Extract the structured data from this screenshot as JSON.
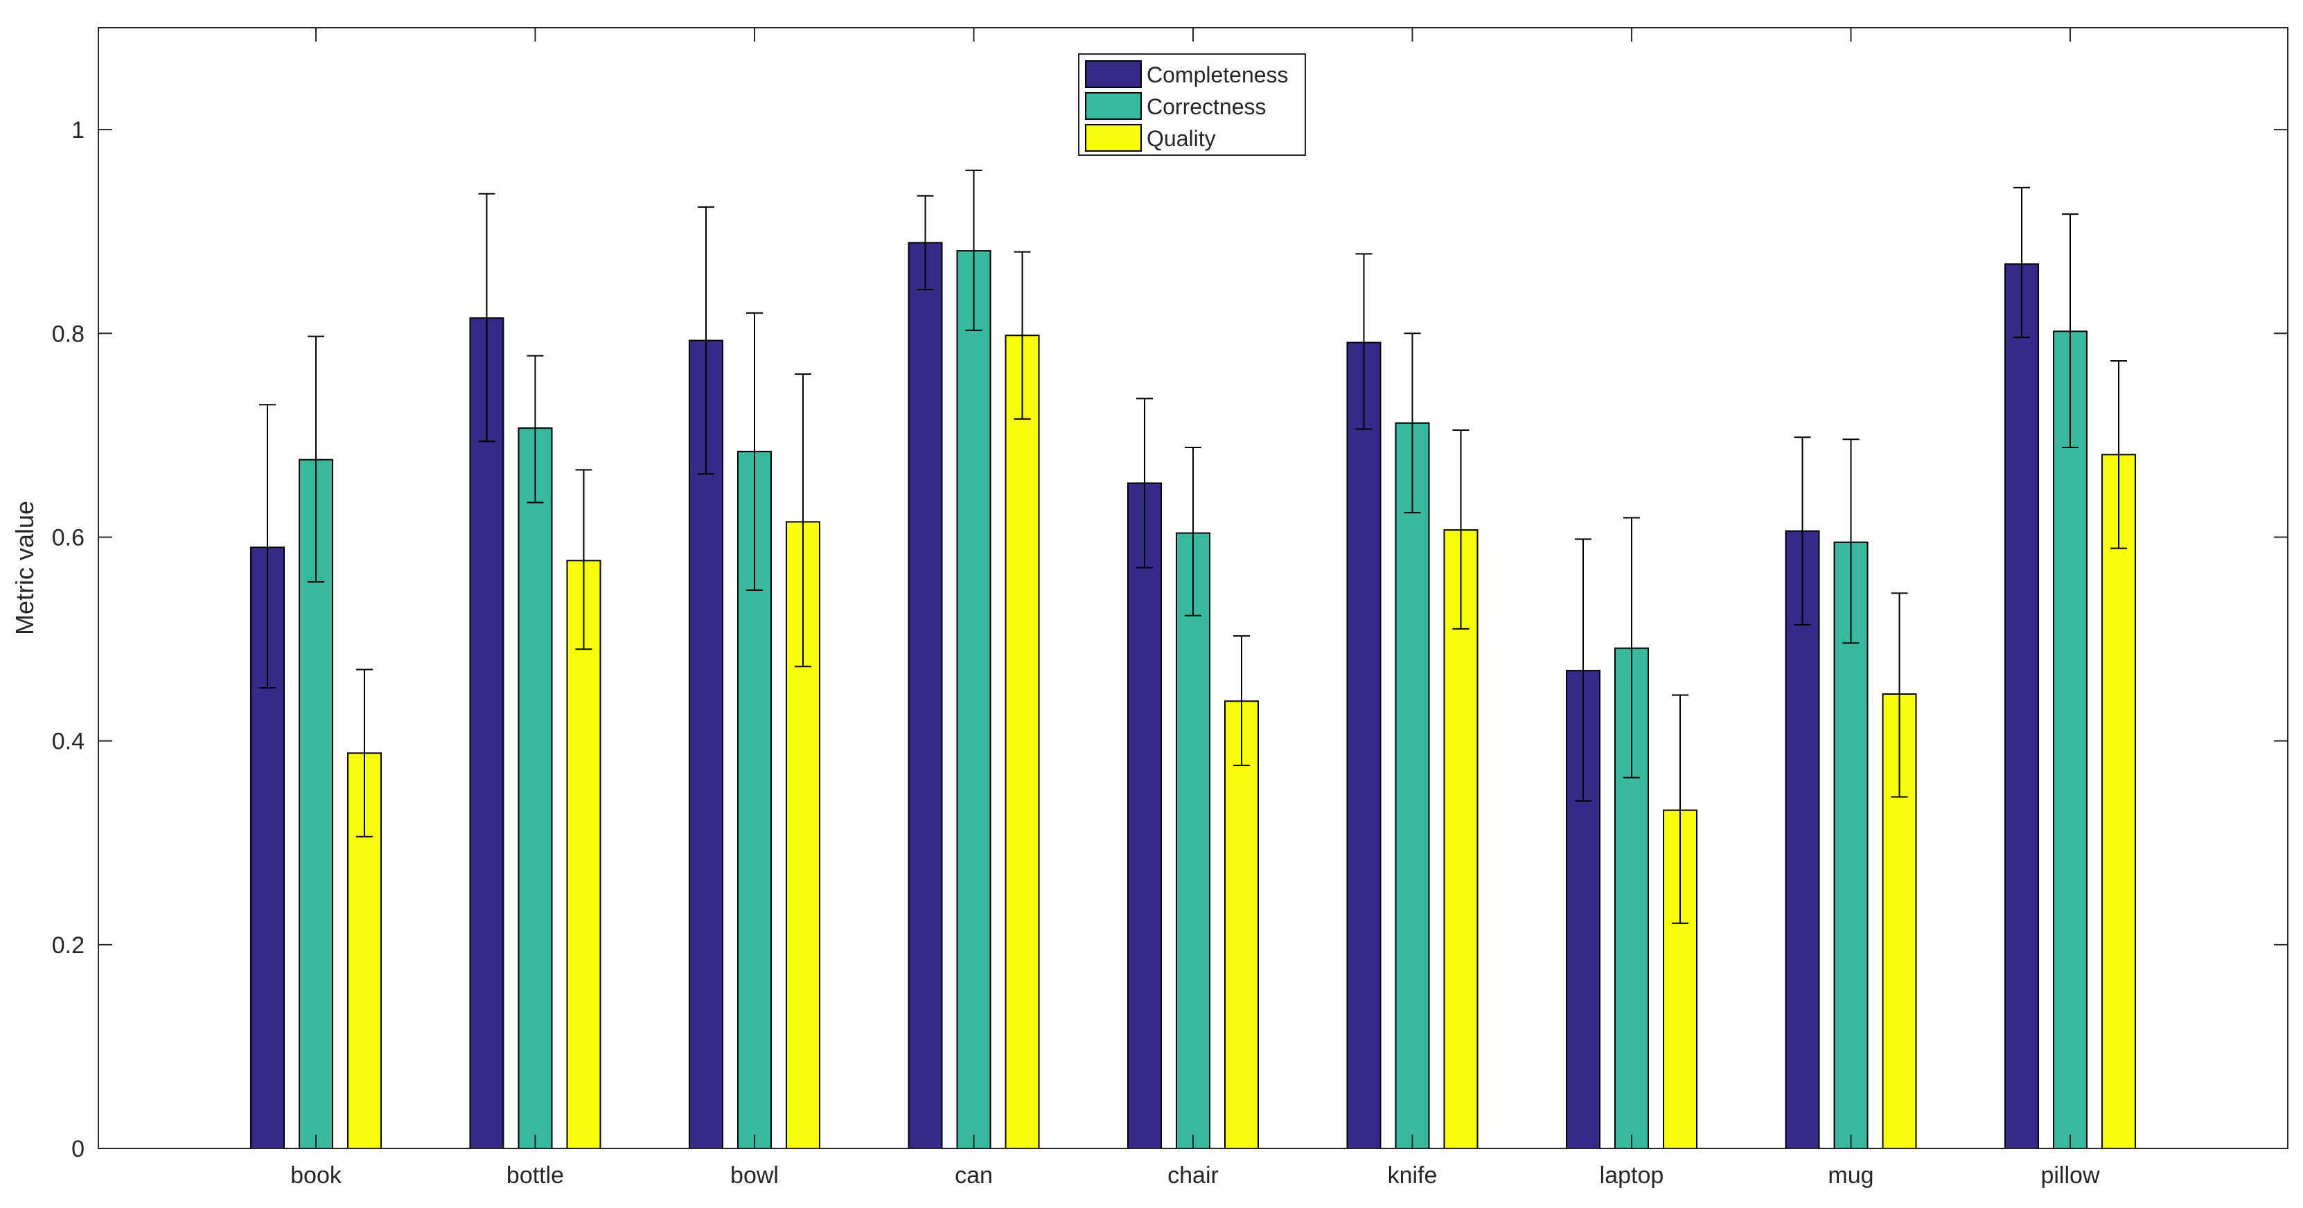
{
  "chart_data": {
    "type": "bar",
    "title": "",
    "xlabel": "",
    "ylabel": "Metric value",
    "ylim": [
      0,
      1.1
    ],
    "yticks": [
      0,
      0.2,
      0.4,
      0.6,
      0.8,
      1
    ],
    "ytick_labels": [
      "0",
      "0.2",
      "0.4",
      "0.6",
      "0.8",
      "1"
    ],
    "categories": [
      "book",
      "bottle",
      "bowl",
      "can",
      "chair",
      "knife",
      "laptop",
      "mug",
      "pillow"
    ],
    "legend_position": "top-center",
    "series": [
      {
        "name": "Completeness",
        "color": "#352a87",
        "values": [
          0.59,
          0.815,
          0.793,
          0.889,
          0.653,
          0.791,
          0.469,
          0.606,
          0.868
        ],
        "err_low": [
          0.452,
          0.694,
          0.662,
          0.843,
          0.57,
          0.706,
          0.341,
          0.514,
          0.796
        ],
        "err_high": [
          0.73,
          0.937,
          0.924,
          0.935,
          0.736,
          0.878,
          0.598,
          0.698,
          0.943
        ]
      },
      {
        "name": "Correctness",
        "color": "#38b99e",
        "values": [
          0.676,
          0.707,
          0.684,
          0.881,
          0.604,
          0.712,
          0.491,
          0.595,
          0.802
        ],
        "err_low": [
          0.556,
          0.634,
          0.548,
          0.803,
          0.523,
          0.624,
          0.364,
          0.496,
          0.688
        ],
        "err_high": [
          0.797,
          0.778,
          0.82,
          0.96,
          0.688,
          0.8,
          0.619,
          0.696,
          0.917
        ]
      },
      {
        "name": "Quality",
        "color": "#f9fb0e",
        "values": [
          0.388,
          0.577,
          0.615,
          0.798,
          0.439,
          0.607,
          0.332,
          0.446,
          0.681
        ],
        "err_low": [
          0.306,
          0.49,
          0.473,
          0.716,
          0.376,
          0.51,
          0.221,
          0.345,
          0.589
        ],
        "err_high": [
          0.47,
          0.666,
          0.76,
          0.88,
          0.503,
          0.705,
          0.445,
          0.545,
          0.773
        ]
      }
    ]
  }
}
